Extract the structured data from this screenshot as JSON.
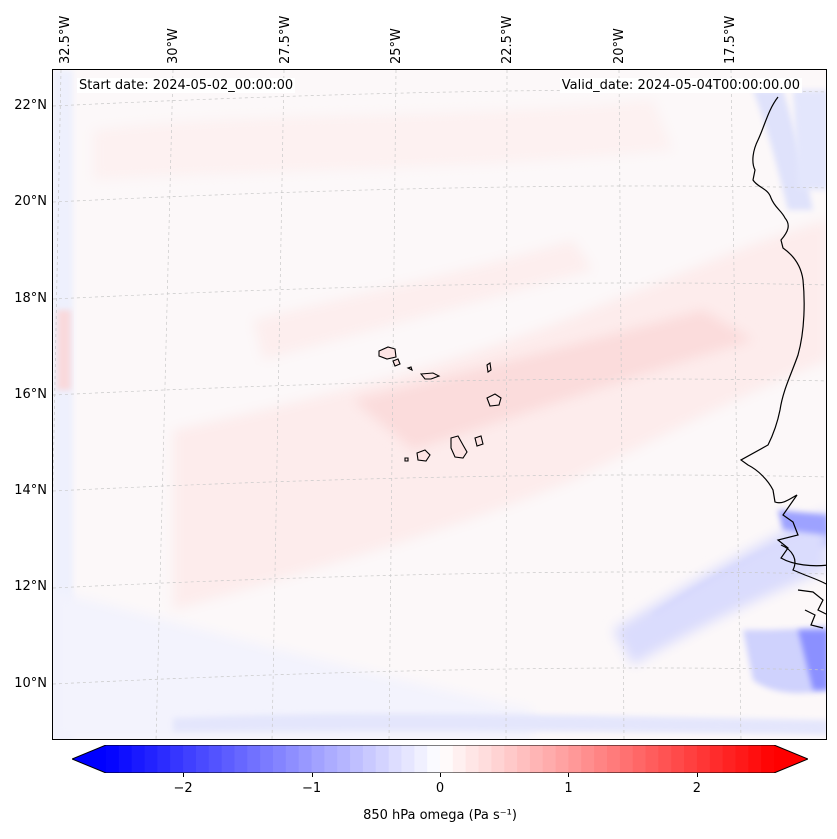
{
  "map": {
    "start_date": "Start date: 2024-05-02_00:00:00",
    "valid_date": "Valid_date: 2024-05-04T00:00:00.00",
    "lon_labels": [
      "32.5°W",
      "30°W",
      "27.5°W",
      "25°W",
      "22.5°W",
      "20°W",
      "17.5°W"
    ],
    "lat_labels": [
      "22°N",
      "20°N",
      "18°N",
      "16°N",
      "14°N",
      "12°N",
      "10°N"
    ]
  },
  "colorbar": {
    "label": "850 hPa omega (Pa s⁻¹)",
    "min": -2.6,
    "max": 2.6,
    "ticks": [
      "−2",
      "−1",
      "0",
      "1",
      "2"
    ],
    "tick_values": [
      -2,
      -1,
      0,
      1,
      2
    ],
    "neg_color": "#0000ff",
    "pos_color": "#ff0000"
  },
  "colors": {
    "coastline": "#000000",
    "gridline": "#c8c8c8",
    "weak_positive": "#fde8e8",
    "weak_negative": "#e6e8fd",
    "strong_negative": "#9aa0ff"
  }
}
